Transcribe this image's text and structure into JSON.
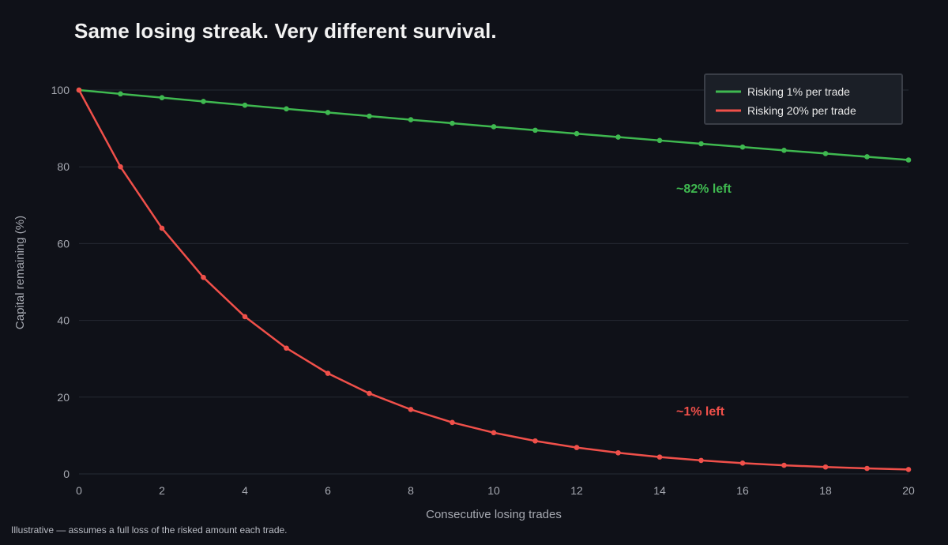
{
  "title": "Same losing streak. Very different survival.",
  "footnote": "Illustrative — assumes a full loss of the risked amount each trade.",
  "colors": {
    "background": "#0f1118",
    "grid": "#262a33",
    "green": "#3fb950",
    "red": "#f0504a",
    "legend_bg": "#1b1f27",
    "legend_border": "#3a3e47"
  },
  "chart_data": {
    "type": "line",
    "title": "Same losing streak. Very different survival.",
    "xlabel": "Consecutive losing trades",
    "ylabel": "Capital remaining (%)",
    "xlim": [
      0,
      20
    ],
    "ylim": [
      0,
      100
    ],
    "x_ticks": [
      0,
      2,
      4,
      6,
      8,
      10,
      12,
      14,
      16,
      18,
      20
    ],
    "y_ticks": [
      0,
      20,
      40,
      60,
      80,
      100
    ],
    "grid": "horizontal",
    "legend_position": "top-right",
    "x": [
      0,
      1,
      2,
      3,
      4,
      5,
      6,
      7,
      8,
      9,
      10,
      11,
      12,
      13,
      14,
      15,
      16,
      17,
      18,
      19,
      20
    ],
    "series": [
      {
        "name": "Risking 1% per trade",
        "color": "#3fb950",
        "values": [
          100,
          99,
          98.01,
          97.03,
          96.06,
          95.1,
          94.15,
          93.21,
          92.27,
          91.35,
          90.44,
          89.53,
          88.64,
          87.75,
          86.87,
          86.01,
          85.15,
          84.29,
          83.45,
          82.62,
          81.79
        ]
      },
      {
        "name": "Risking 20% per trade",
        "color": "#f0504a",
        "values": [
          100,
          80,
          64,
          51.2,
          40.96,
          32.77,
          26.21,
          20.97,
          16.78,
          13.42,
          10.74,
          8.59,
          6.87,
          5.5,
          4.4,
          3.52,
          2.81,
          2.25,
          1.8,
          1.44,
          1.15
        ]
      }
    ],
    "annotations": [
      {
        "text": "~82% left",
        "x": 14.4,
        "y": 74.5,
        "color": "#3fb950"
      },
      {
        "text": "~1% left",
        "x": 14.4,
        "y": 16.5,
        "color": "#f0504a"
      }
    ]
  }
}
